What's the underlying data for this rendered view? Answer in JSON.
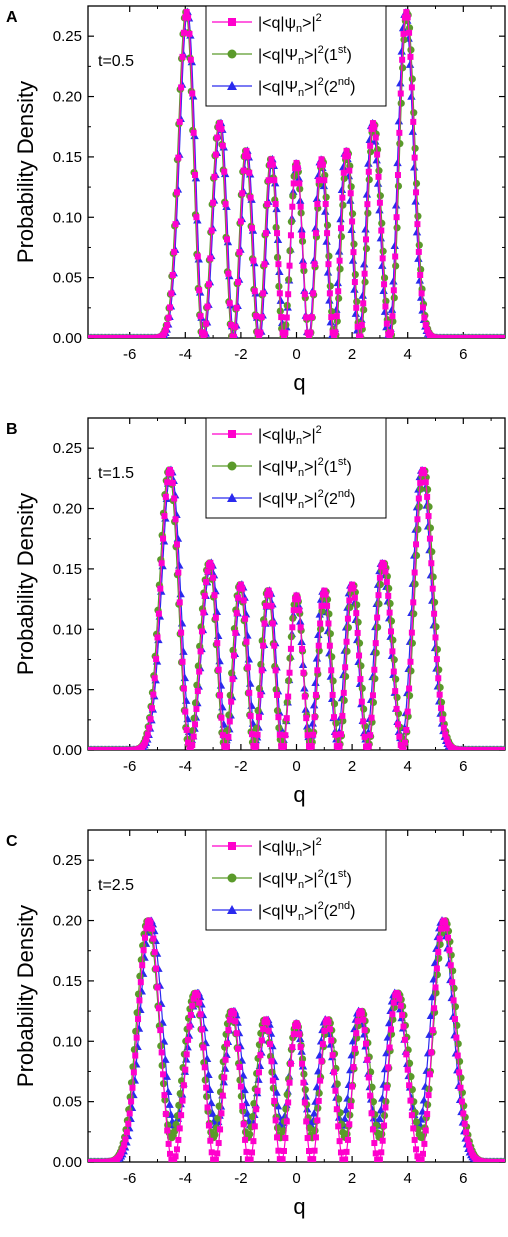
{
  "colors": {
    "pink": "#ff00cc",
    "green": "#5a9a2a",
    "blue": "#2a2aee",
    "axis": "#000000"
  },
  "legend": {
    "series1": {
      "pre": "|<q|",
      "psi": "ψ",
      "sub": "n",
      "post": ">|",
      "sup": "2",
      "tail": ""
    },
    "series2": {
      "pre": "|<q|",
      "psi": "Ψ",
      "sub": "n",
      "post": ">|",
      "sup": "2",
      "tail_open": "(1",
      "tail_sup": "st",
      "tail_close": ")"
    },
    "series3": {
      "pre": "|<q|",
      "psi": "Ψ",
      "sub": "n",
      "post": ">|",
      "sup": "2",
      "tail_open": "(2",
      "tail_sup": "nd",
      "tail_close": ")"
    }
  },
  "chart_data": [
    {
      "type": "scatter",
      "panel_label": "A",
      "annotation": "t=0.5",
      "xlabel": "q",
      "ylabel": "Probability Density",
      "xlim": [
        -7.5,
        7.5
      ],
      "ylim": [
        0,
        0.275
      ],
      "xticks": [
        "-6",
        "-4",
        "-2",
        "0",
        "2",
        "4",
        "6"
      ],
      "yticks": [
        "0.00",
        "0.05",
        "0.10",
        "0.15",
        "0.20",
        "0.25"
      ],
      "peaks": [
        {
          "q": -3.95,
          "v": 0.27
        },
        {
          "q": -2.75,
          "v": 0.178
        },
        {
          "q": -1.8,
          "v": 0.155
        },
        {
          "q": -0.9,
          "v": 0.148
        },
        {
          "q": 0.0,
          "v": 0.145
        },
        {
          "q": 0.9,
          "v": 0.148
        },
        {
          "q": 1.8,
          "v": 0.155
        },
        {
          "q": 2.75,
          "v": 0.178
        },
        {
          "q": 3.95,
          "v": 0.27
        }
      ],
      "series": [
        {
          "name": "|<q|ψn>|^2",
          "floor": 0.0,
          "shift": 0.0
        },
        {
          "name": "|<q|Ψn>|^2(1st)",
          "floor": 0.0,
          "shift": 0.03
        },
        {
          "name": "|<q|Ψn>|^2(2nd)",
          "floor": 0.0,
          "shift": -0.03
        }
      ]
    },
    {
      "type": "scatter",
      "panel_label": "B",
      "annotation": "t=1.5",
      "xlabel": "q",
      "ylabel": "Probability Density",
      "xlim": [
        -7.5,
        7.5
      ],
      "ylim": [
        0,
        0.275
      ],
      "xticks": [
        "-6",
        "-4",
        "-2",
        "0",
        "2",
        "4",
        "6"
      ],
      "yticks": [
        "0.00",
        "0.05",
        "0.10",
        "0.15",
        "0.20",
        "0.25"
      ],
      "peaks": [
        {
          "q": -4.55,
          "v": 0.232
        },
        {
          "q": -3.1,
          "v": 0.155
        },
        {
          "q": -2.0,
          "v": 0.137
        },
        {
          "q": -1.0,
          "v": 0.132
        },
        {
          "q": 0.0,
          "v": 0.128
        },
        {
          "q": 1.0,
          "v": 0.132
        },
        {
          "q": 2.0,
          "v": 0.137
        },
        {
          "q": 3.1,
          "v": 0.155
        },
        {
          "q": 4.55,
          "v": 0.232
        }
      ],
      "series": [
        {
          "name": "|<q|ψn>|^2",
          "floor": 0.0,
          "shift": 0.0
        },
        {
          "name": "|<q|Ψn>|^2(1st)",
          "floor": 0.004,
          "shift": 0.04
        },
        {
          "name": "|<q|Ψn>|^2(2nd)",
          "floor": 0.008,
          "shift": -0.04
        }
      ]
    },
    {
      "type": "scatter",
      "panel_label": "C",
      "annotation": "t=2.5",
      "xlabel": "q",
      "ylabel": "Probability Density",
      "xlim": [
        -7.5,
        7.5
      ],
      "ylim": [
        0,
        0.275
      ],
      "xticks": [
        "-6",
        "-4",
        "-2",
        "0",
        "2",
        "4",
        "6"
      ],
      "yticks": [
        "0.00",
        "0.05",
        "0.10",
        "0.15",
        "0.20",
        "0.25"
      ],
      "peaks": [
        {
          "q": -5.3,
          "v": 0.2
        },
        {
          "q": -3.6,
          "v": 0.14
        },
        {
          "q": -2.3,
          "v": 0.125
        },
        {
          "q": -1.1,
          "v": 0.118
        },
        {
          "q": 0.0,
          "v": 0.115
        },
        {
          "q": 1.1,
          "v": 0.118
        },
        {
          "q": 2.3,
          "v": 0.125
        },
        {
          "q": 3.6,
          "v": 0.14
        },
        {
          "q": 5.3,
          "v": 0.2
        }
      ],
      "series": [
        {
          "name": "|<q|ψn>|^2",
          "floor": 0.0,
          "shift": 0.0
        },
        {
          "name": "|<q|Ψn>|^2(1st)",
          "floor": 0.02,
          "shift": 0.05
        },
        {
          "name": "|<q|Ψn>|^2(2nd)",
          "floor": 0.03,
          "shift": -0.06
        }
      ]
    }
  ]
}
